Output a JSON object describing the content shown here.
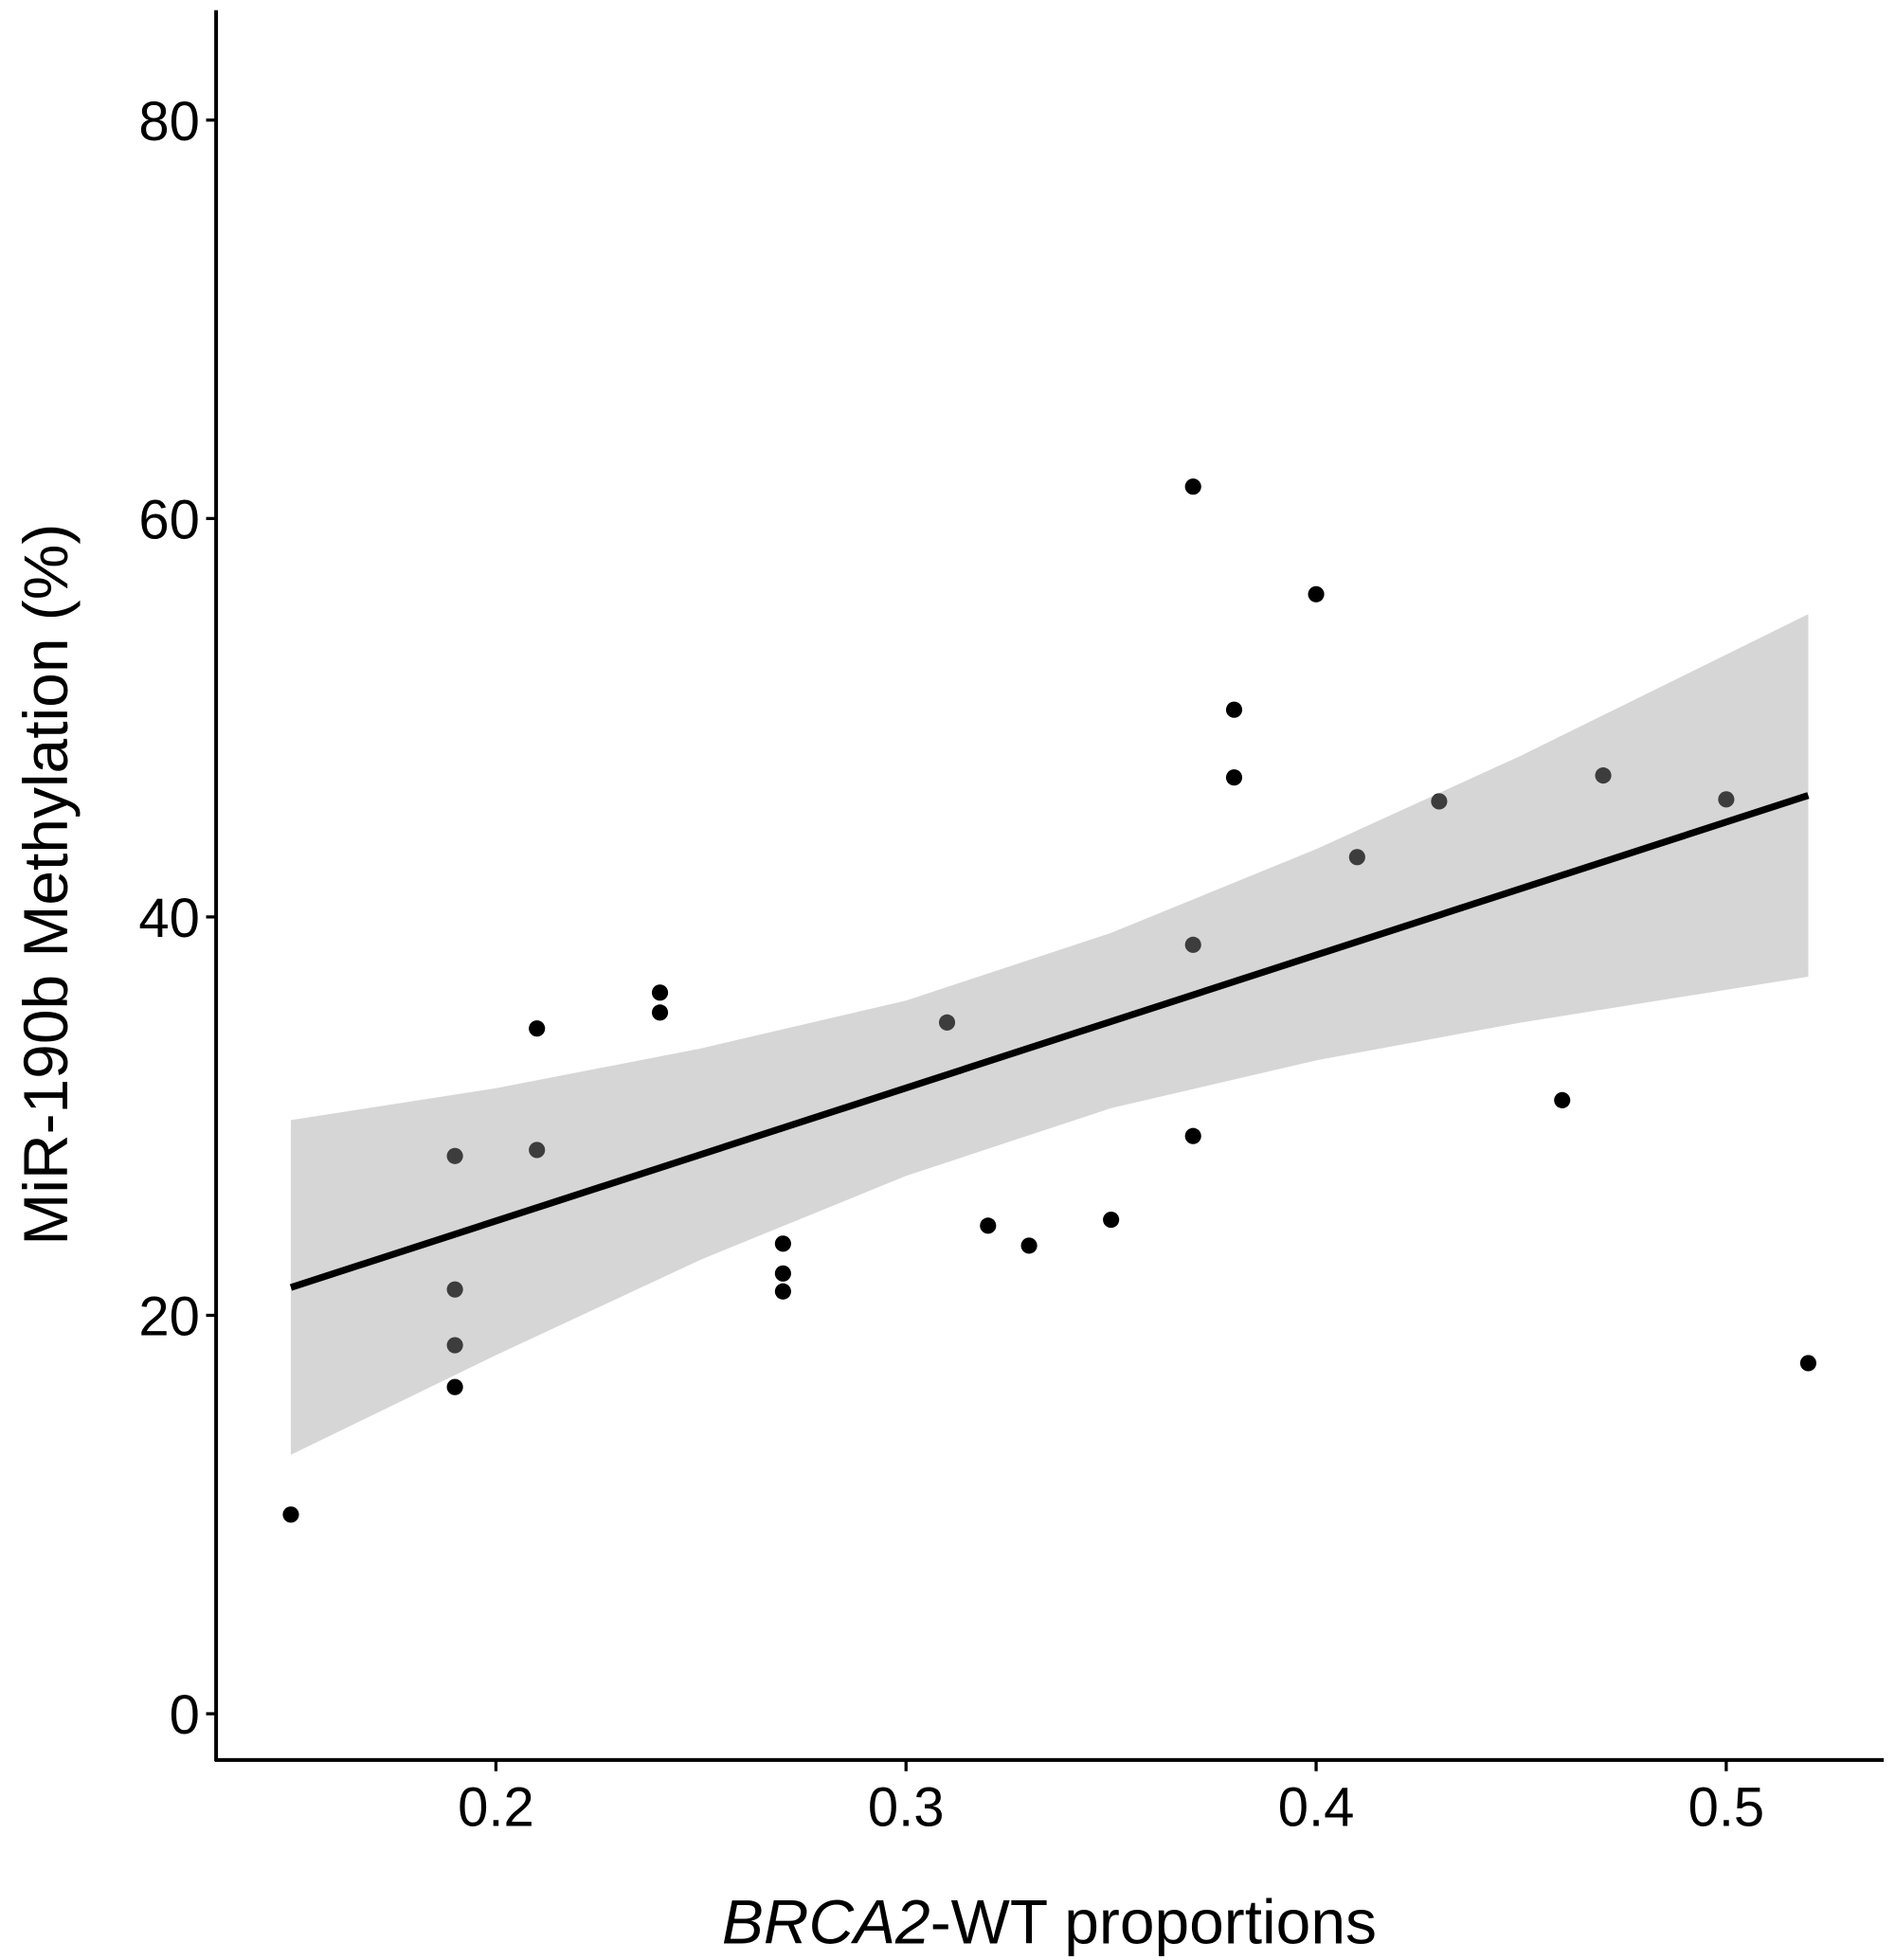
{
  "chart_data": {
    "type": "scatter",
    "title": "",
    "xlabel_italic": "BRCA2",
    "xlabel_rest": "-WT proportions",
    "ylabel": "MiR-190b Methylation (%)",
    "xlim": [
      0.132,
      0.538
    ],
    "ylim": [
      -4.7,
      85.7
    ],
    "xticks": [
      0.2,
      0.3,
      0.4,
      0.5
    ],
    "xtick_labels": [
      "0.2",
      "0.3",
      "0.4",
      "0.5"
    ],
    "yticks": [
      0,
      20,
      40,
      60,
      80
    ],
    "ytick_labels": [
      "0",
      "20",
      "40",
      "60",
      "80"
    ],
    "grid": false,
    "points": [
      [
        0.15,
        10.0
      ],
      [
        0.19,
        28.0
      ],
      [
        0.19,
        21.3
      ],
      [
        0.19,
        18.5
      ],
      [
        0.19,
        16.4
      ],
      [
        0.21,
        34.4
      ],
      [
        0.21,
        28.3
      ],
      [
        0.24,
        36.2
      ],
      [
        0.24,
        35.2
      ],
      [
        0.27,
        23.6
      ],
      [
        0.27,
        22.1
      ],
      [
        0.27,
        21.2
      ],
      [
        0.31,
        34.7
      ],
      [
        0.32,
        24.5
      ],
      [
        0.33,
        23.5
      ],
      [
        0.35,
        24.8
      ],
      [
        0.37,
        61.6
      ],
      [
        0.37,
        38.6
      ],
      [
        0.37,
        29.0
      ],
      [
        0.38,
        50.4
      ],
      [
        0.38,
        47.0
      ],
      [
        0.4,
        56.2
      ],
      [
        0.41,
        43.0
      ],
      [
        0.43,
        45.8
      ],
      [
        0.46,
        30.8
      ],
      [
        0.47,
        47.1
      ],
      [
        0.5,
        45.9
      ],
      [
        0.52,
        17.6
      ]
    ],
    "fit_line": {
      "x": [
        0.15,
        0.52
      ],
      "y": [
        21.4,
        46.1
      ],
      "color": "#000000"
    },
    "confidence_band": {
      "x": [
        0.15,
        0.2,
        0.25,
        0.3,
        0.35,
        0.4,
        0.45,
        0.52
      ],
      "lower": [
        13.0,
        18.0,
        22.8,
        27.0,
        30.4,
        32.8,
        34.7,
        37.0
      ],
      "upper": [
        29.8,
        31.4,
        33.4,
        35.8,
        39.2,
        43.4,
        48.1,
        55.2
      ],
      "color": "#999999"
    },
    "point_color": "#000000"
  }
}
